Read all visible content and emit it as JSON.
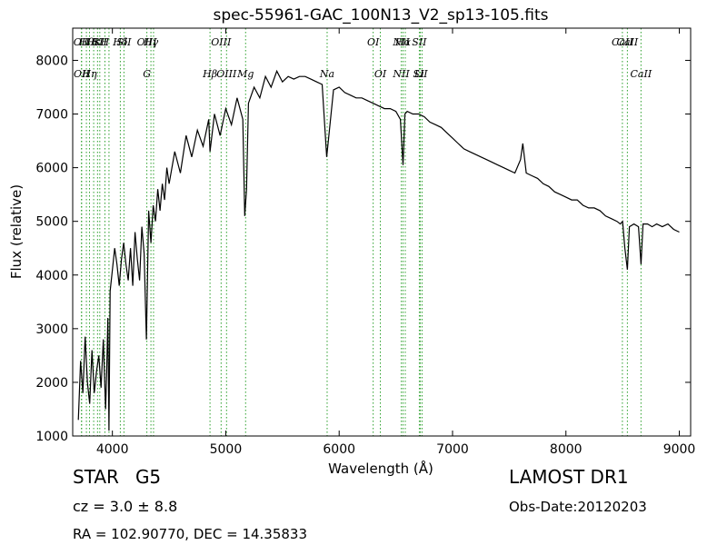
{
  "chart_data": {
    "type": "line",
    "title": "spec-55961-GAC_100N13_V2_sp13-105.fits",
    "xlabel": "Wavelength (Å)",
    "ylabel": "Flux (relative)",
    "xlim": [
      3650,
      9100
    ],
    "ylim": [
      1000,
      8600
    ],
    "xticks": [
      4000,
      5000,
      6000,
      7000,
      8000,
      9000
    ],
    "yticks": [
      1000,
      2000,
      3000,
      4000,
      5000,
      6000,
      7000,
      8000
    ],
    "grid": false,
    "line_color": "#000000",
    "marker_color": "#2ca02c",
    "series": [
      {
        "x": [
          3700,
          3720,
          3740,
          3760,
          3780,
          3800,
          3820,
          3840,
          3860,
          3880,
          3900,
          3920,
          3940,
          3950,
          3960,
          3970,
          3980,
          4000,
          4020,
          4040,
          4060,
          4080,
          4100,
          4120,
          4140,
          4160,
          4180,
          4200,
          4220,
          4240,
          4260,
          4280,
          4300,
          4320,
          4340,
          4360,
          4380,
          4400,
          4420,
          4440,
          4460,
          4480,
          4500,
          4550,
          4600,
          4650,
          4700,
          4750,
          4800,
          4850,
          4861,
          4900,
          4950,
          5000,
          5050,
          5100,
          5150,
          5167,
          5183,
          5200,
          5250,
          5300,
          5350,
          5400,
          5450,
          5500,
          5550,
          5600,
          5650,
          5700,
          5750,
          5800,
          5850,
          5890,
          5950,
          6000,
          6050,
          6100,
          6150,
          6200,
          6250,
          6300,
          6350,
          6400,
          6450,
          6500,
          6540,
          6563,
          6580,
          6600,
          6650,
          6700,
          6750,
          6800,
          6850,
          6900,
          6950,
          7000,
          7050,
          7100,
          7150,
          7200,
          7250,
          7300,
          7350,
          7400,
          7450,
          7500,
          7550,
          7600,
          7620,
          7650,
          7700,
          7750,
          7800,
          7850,
          7900,
          7950,
          8000,
          8050,
          8100,
          8150,
          8200,
          8250,
          8300,
          8350,
          8400,
          8450,
          8480,
          8500,
          8520,
          8542,
          8560,
          8600,
          8640,
          8662,
          8680,
          8720,
          8760,
          8800,
          8850,
          8900,
          8950,
          9000
        ],
        "y": [
          1300,
          2400,
          1800,
          2850,
          2000,
          1600,
          2600,
          1800,
          2200,
          2500,
          1900,
          2800,
          1500,
          2200,
          3200,
          1100,
          3700,
          4100,
          4500,
          4200,
          3800,
          4300,
          4600,
          4200,
          3900,
          4500,
          3800,
          4800,
          4300,
          3900,
          4900,
          4400,
          2800,
          5200,
          4600,
          5300,
          5000,
          5600,
          5200,
          5700,
          5400,
          6000,
          5700,
          6300,
          5900,
          6600,
          6200,
          6700,
          6400,
          6900,
          6300,
          7000,
          6600,
          7100,
          6800,
          7300,
          6900,
          5100,
          5600,
          7200,
          7500,
          7300,
          7700,
          7500,
          7800,
          7600,
          7700,
          7650,
          7700,
          7700,
          7650,
          7600,
          7550,
          6200,
          7450,
          7500,
          7400,
          7350,
          7300,
          7300,
          7250,
          7200,
          7150,
          7100,
          7100,
          7050,
          6900,
          6050,
          7000,
          7050,
          7000,
          7000,
          6950,
          6850,
          6800,
          6750,
          6650,
          6550,
          6450,
          6350,
          6300,
          6250,
          6200,
          6150,
          6100,
          6050,
          6000,
          5950,
          5900,
          6150,
          6450,
          5900,
          5850,
          5800,
          5700,
          5650,
          5550,
          5500,
          5450,
          5400,
          5400,
          5300,
          5250,
          5250,
          5200,
          5100,
          5050,
          5000,
          4950,
          5000,
          4500,
          4100,
          4900,
          4950,
          4900,
          4200,
          4950,
          4950,
          4900,
          4950,
          4900,
          4950,
          4850,
          4800
        ]
      }
    ],
    "line_markers": [
      {
        "wl": 3727,
        "top": [
          "OII"
        ],
        "bottom": []
      },
      {
        "wl": 3729,
        "top": [],
        "bottom": [
          "OII"
        ]
      },
      {
        "wl": 3771,
        "top": [
          "Hθ"
        ],
        "bottom": []
      },
      {
        "wl": 3798,
        "top": [],
        "bottom": [
          "Hη"
        ]
      },
      {
        "wl": 3835,
        "top": [
          "Hε"
        ],
        "bottom": []
      },
      {
        "wl": 3869,
        "top": [
          "K"
        ],
        "bottom": []
      },
      {
        "wl": 3889,
        "top": [
          "SII"
        ],
        "bottom": []
      },
      {
        "wl": 3934,
        "top": [
          "H"
        ],
        "bottom": []
      },
      {
        "wl": 3970,
        "top": [],
        "bottom": []
      },
      {
        "wl": 4070,
        "top": [
          "Hδ"
        ],
        "bottom": []
      },
      {
        "wl": 4102,
        "top": [
          "SII"
        ],
        "bottom": []
      },
      {
        "wl": 4304,
        "top": [
          "OIII"
        ],
        "bottom": [
          "G"
        ]
      },
      {
        "wl": 4340,
        "top": [
          "Hγ"
        ],
        "bottom": []
      },
      {
        "wl": 4363,
        "top": [],
        "bottom": []
      },
      {
        "wl": 4861,
        "top": [],
        "bottom": [
          "Hβ"
        ]
      },
      {
        "wl": 4959,
        "top": [
          "OIII"
        ],
        "bottom": []
      },
      {
        "wl": 5007,
        "top": [],
        "bottom": [
          "OIII"
        ]
      },
      {
        "wl": 5175,
        "top": [],
        "bottom": [
          "Mg"
        ]
      },
      {
        "wl": 5894,
        "top": [],
        "bottom": [
          "Na"
        ]
      },
      {
        "wl": 6300,
        "top": [
          "OI"
        ],
        "bottom": []
      },
      {
        "wl": 6363,
        "top": [],
        "bottom": [
          "OI"
        ]
      },
      {
        "wl": 6548,
        "top": [
          "NII"
        ],
        "bottom": [
          "NII"
        ]
      },
      {
        "wl": 6563,
        "top": [
          "Hα"
        ],
        "bottom": []
      },
      {
        "wl": 6583,
        "top": [],
        "bottom": []
      },
      {
        "wl": 6707,
        "top": [
          "SII"
        ],
        "bottom": [
          "Li"
        ]
      },
      {
        "wl": 6716,
        "top": [],
        "bottom": [
          "SII"
        ]
      },
      {
        "wl": 6731,
        "top": [],
        "bottom": []
      },
      {
        "wl": 8498,
        "top": [
          "CaII"
        ],
        "bottom": []
      },
      {
        "wl": 8542,
        "top": [
          "CaII"
        ],
        "bottom": []
      },
      {
        "wl": 8662,
        "top": [],
        "bottom": [
          "CaII"
        ]
      }
    ]
  },
  "info": {
    "class": "STAR",
    "subclass": "G5",
    "cz": "cz = 3.0 ± 8.8",
    "radec": "RA = 102.90770, DEC = 14.35833",
    "survey": "LAMOST DR1",
    "obs_date": "Obs-Date:20120203"
  }
}
